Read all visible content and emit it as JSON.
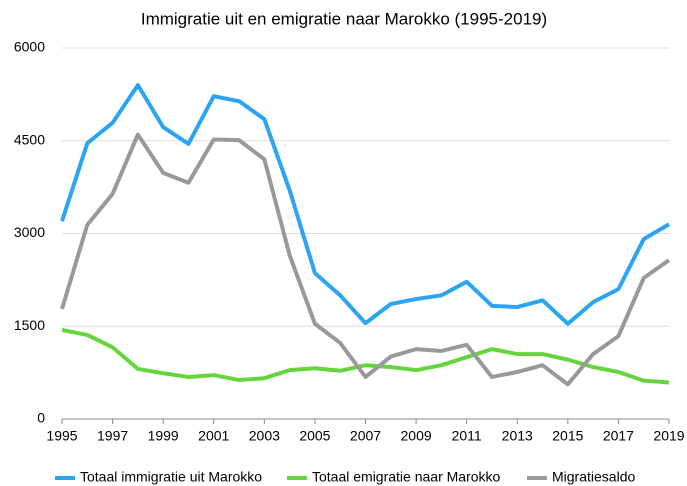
{
  "chart_data": {
    "type": "line",
    "title": "Immigratie uit en emigratie naar Marokko (1995-2019)",
    "x": [
      1995,
      1996,
      1997,
      1998,
      1999,
      2000,
      2001,
      2002,
      2003,
      2004,
      2005,
      2006,
      2007,
      2008,
      2009,
      2010,
      2011,
      2012,
      2013,
      2014,
      2015,
      2016,
      2017,
      2018,
      2019
    ],
    "series": [
      {
        "name": "Totaal immigratie uit Marokko",
        "color": "#2ba4f4",
        "values": [
          3200,
          4460,
          4790,
          5400,
          4720,
          4450,
          5220,
          5140,
          4850,
          3700,
          2360,
          2000,
          1550,
          1860,
          1940,
          2000,
          2220,
          1830,
          1810,
          1920,
          1540,
          1890,
          2100,
          2910,
          3150
        ]
      },
      {
        "name": "Totaal emigratie naar Marokko",
        "color": "#66d43c",
        "values": [
          1440,
          1360,
          1160,
          810,
          740,
          680,
          710,
          630,
          660,
          790,
          820,
          780,
          870,
          840,
          790,
          870,
          1000,
          1130,
          1050,
          1050,
          960,
          840,
          760,
          620,
          590
        ]
      },
      {
        "name": "Migratiesaldo",
        "color": "#999999",
        "values": [
          1780,
          3140,
          3640,
          4600,
          3980,
          3820,
          4520,
          4510,
          4200,
          2650,
          1540,
          1230,
          680,
          1010,
          1130,
          1100,
          1200,
          680,
          760,
          870,
          560,
          1050,
          1340,
          2280,
          2570
        ]
      }
    ],
    "xlim": [
      1995,
      2019
    ],
    "xticks": [
      1995,
      1997,
      1999,
      2001,
      2003,
      2005,
      2007,
      2009,
      2011,
      2013,
      2015,
      2017,
      2019
    ],
    "ylim": [
      0,
      6000
    ],
    "yticks": [
      0,
      1500,
      3000,
      4500,
      6000
    ],
    "grid": true,
    "legend": "bottom"
  }
}
